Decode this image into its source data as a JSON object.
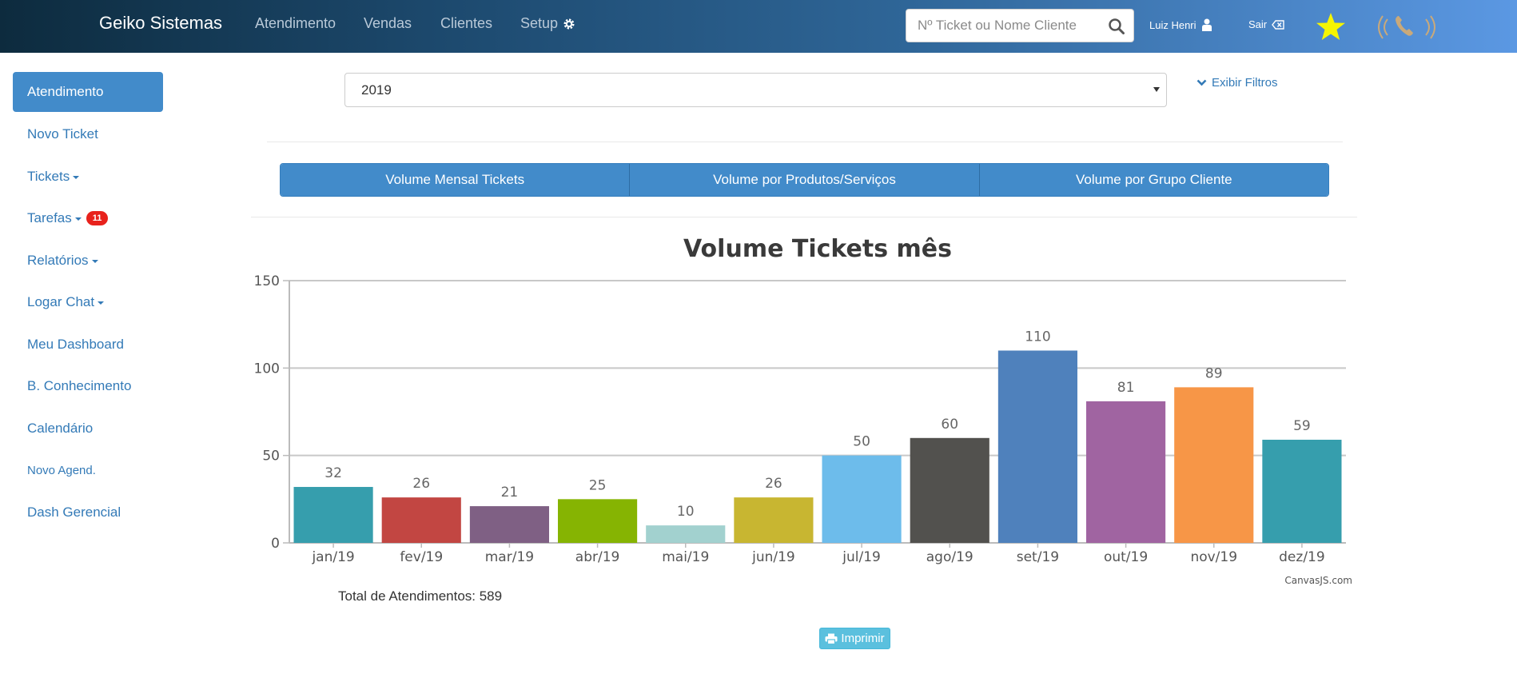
{
  "navbar": {
    "brand": "Geiko Sistemas",
    "links": [
      "Atendimento",
      "Vendas",
      "Clientes",
      "Setup"
    ],
    "search_placeholder": "Nº Ticket ou Nome Cliente",
    "user": "Luiz Henri",
    "logout": "Sair",
    "accent_star": "#f5f500"
  },
  "sidebar": {
    "items": [
      "Atendimento",
      "Novo Ticket",
      "Tickets",
      "Tarefas",
      "Relatórios",
      "Logar Chat",
      "Meu Dashboard",
      "B. Conhecimento",
      "Calendário",
      "Novo Agend.",
      "Dash Gerencial"
    ],
    "tarefas_badge": "11"
  },
  "filters": {
    "year": "2019",
    "show_filters": "Exibir Filtros"
  },
  "tabs": [
    "Volume Mensal Tickets",
    "Volume por Produtos/Serviços",
    "Volume por Grupo Cliente"
  ],
  "chart_data": {
    "type": "bar",
    "title": "Volume Tickets mês",
    "categories": [
      "jan/19",
      "fev/19",
      "mar/19",
      "abr/19",
      "mai/19",
      "jun/19",
      "jul/19",
      "ago/19",
      "set/19",
      "out/19",
      "nov/19",
      "dez/19"
    ],
    "values": [
      32,
      26,
      21,
      25,
      10,
      26,
      50,
      60,
      110,
      81,
      89,
      59
    ],
    "colors": [
      "#369ead",
      "#c24642",
      "#7f6084",
      "#86b402",
      "#a2d1cf",
      "#c8b631",
      "#6dbceb",
      "#52514e",
      "#4f81bc",
      "#a064a1",
      "#f79647",
      "#369ead"
    ],
    "yticks": [
      0,
      50,
      100,
      150
    ],
    "ylim": [
      0,
      150
    ],
    "grid": true,
    "credit": "CanvasJS.com"
  },
  "footer": {
    "total": "Total de Atendimentos: 589",
    "print": "Imprimir"
  }
}
